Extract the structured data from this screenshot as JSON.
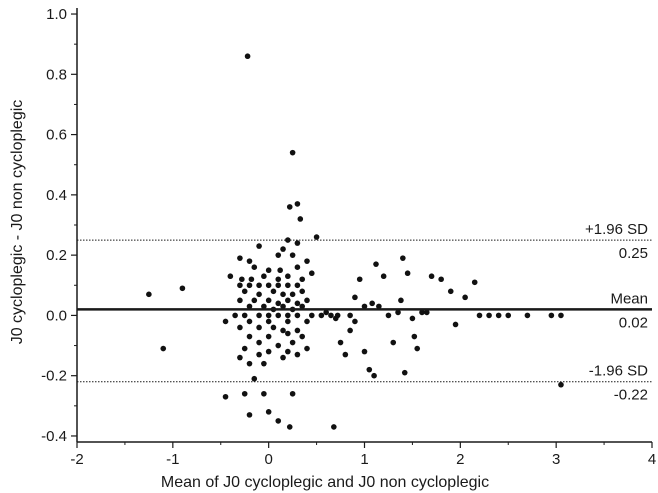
{
  "chart_data": {
    "type": "scatter",
    "xlabel": "Mean of J0 cycloplegic and J0 non  cycloplegic",
    "ylabel": "J0 cycloplegic - J0 non cycloplegic",
    "xlim": [
      -2,
      4
    ],
    "ylim": [
      -0.42,
      1.02
    ],
    "x_ticks": [
      -2,
      -1,
      0,
      1,
      2,
      3,
      4
    ],
    "y_ticks": [
      -0.4,
      -0.2,
      0.0,
      0.2,
      0.4,
      0.6,
      0.8,
      1.0
    ],
    "x_tick_labels": [
      "-2",
      "-1",
      "0",
      "1",
      "2",
      "3",
      "4"
    ],
    "y_tick_labels": [
      "-0.4",
      "-0.2",
      "0.0",
      "0.2",
      "0.4",
      "0.6",
      "0.8",
      "1.0"
    ],
    "grid": false,
    "reference_lines": [
      {
        "label": "+1.96 SD",
        "value_label": "0.25",
        "y": 0.25,
        "style": "dotted"
      },
      {
        "label": "Mean",
        "value_label": "0.02",
        "y": 0.02,
        "style": "solid"
      },
      {
        "label": "-1.96 SD",
        "value_label": "-0.22",
        "y": -0.22,
        "style": "dotted"
      }
    ],
    "points": [
      [
        -0.22,
        0.86
      ],
      [
        0.25,
        0.54
      ],
      [
        0.3,
        0.37
      ],
      [
        0.22,
        0.36
      ],
      [
        0.33,
        0.32
      ],
      [
        0.5,
        0.26
      ],
      [
        0.2,
        0.25
      ],
      [
        0.3,
        0.24
      ],
      [
        -0.1,
        0.23
      ],
      [
        0.15,
        0.22
      ],
      [
        -0.3,
        0.19
      ],
      [
        -0.2,
        0.18
      ],
      [
        0.1,
        0.2
      ],
      [
        0.25,
        0.2
      ],
      [
        0.4,
        0.18
      ],
      [
        -0.15,
        0.16
      ],
      [
        0.0,
        0.15
      ],
      [
        0.12,
        0.15
      ],
      [
        0.3,
        0.16
      ],
      [
        -0.4,
        0.13
      ],
      [
        -0.28,
        0.12
      ],
      [
        -0.18,
        0.12
      ],
      [
        -0.05,
        0.13
      ],
      [
        0.1,
        0.12
      ],
      [
        0.2,
        0.13
      ],
      [
        0.35,
        0.12
      ],
      [
        0.45,
        0.14
      ],
      [
        -0.3,
        0.1
      ],
      [
        -0.2,
        0.1
      ],
      [
        -0.1,
        0.1
      ],
      [
        0.0,
        0.1
      ],
      [
        0.1,
        0.1
      ],
      [
        0.2,
        0.1
      ],
      [
        0.3,
        0.1
      ],
      [
        -0.25,
        0.08
      ],
      [
        -0.1,
        0.07
      ],
      [
        0.05,
        0.08
      ],
      [
        0.15,
        0.07
      ],
      [
        0.25,
        0.07
      ],
      [
        0.35,
        0.08
      ],
      [
        -0.3,
        0.05
      ],
      [
        -0.15,
        0.05
      ],
      [
        0.0,
        0.05
      ],
      [
        0.1,
        0.04
      ],
      [
        0.2,
        0.05
      ],
      [
        0.3,
        0.04
      ],
      [
        0.4,
        0.05
      ],
      [
        -0.2,
        0.03
      ],
      [
        -0.05,
        0.03
      ],
      [
        0.05,
        0.02
      ],
      [
        0.15,
        0.03
      ],
      [
        0.25,
        0.02
      ],
      [
        0.35,
        0.03
      ],
      [
        -0.35,
        0.0
      ],
      [
        -0.25,
        0.0
      ],
      [
        -0.1,
        0.0
      ],
      [
        0.0,
        0.0
      ],
      [
        0.1,
        0.0
      ],
      [
        0.2,
        0.0
      ],
      [
        0.3,
        0.0
      ],
      [
        0.45,
        0.0
      ],
      [
        0.55,
        0.0
      ],
      [
        -0.45,
        -0.02
      ],
      [
        -0.2,
        -0.02
      ],
      [
        0.0,
        -0.02
      ],
      [
        0.2,
        -0.02
      ],
      [
        0.4,
        -0.02
      ],
      [
        -0.3,
        -0.04
      ],
      [
        -0.1,
        -0.04
      ],
      [
        0.05,
        -0.04
      ],
      [
        0.15,
        -0.05
      ],
      [
        0.3,
        -0.05
      ],
      [
        -0.2,
        -0.07
      ],
      [
        0.0,
        -0.07
      ],
      [
        0.2,
        -0.06
      ],
      [
        0.35,
        -0.07
      ],
      [
        -0.1,
        -0.09
      ],
      [
        0.1,
        -0.1
      ],
      [
        0.25,
        -0.09
      ],
      [
        -0.25,
        -0.11
      ],
      [
        0.0,
        -0.12
      ],
      [
        0.2,
        -0.12
      ],
      [
        0.4,
        -0.11
      ],
      [
        -0.3,
        -0.14
      ],
      [
        -0.1,
        -0.13
      ],
      [
        0.15,
        -0.14
      ],
      [
        0.3,
        -0.13
      ],
      [
        -0.2,
        -0.16
      ],
      [
        -0.05,
        -0.16
      ],
      [
        -0.15,
        -0.21
      ],
      [
        -0.25,
        -0.26
      ],
      [
        -0.05,
        -0.26
      ],
      [
        0.25,
        -0.26
      ],
      [
        -0.45,
        -0.27
      ],
      [
        -0.2,
        -0.33
      ],
      [
        0.0,
        -0.32
      ],
      [
        0.1,
        -0.35
      ],
      [
        0.22,
        -0.37
      ],
      [
        0.68,
        -0.37
      ],
      [
        -1.25,
        0.07
      ],
      [
        -1.1,
        -0.11
      ],
      [
        -0.9,
        0.09
      ],
      [
        0.6,
        0.01
      ],
      [
        0.7,
        -0.01
      ],
      [
        0.75,
        -0.09
      ],
      [
        0.8,
        -0.13
      ],
      [
        0.85,
        -0.05
      ],
      [
        0.9,
        -0.02
      ],
      [
        0.95,
        0.12
      ],
      [
        1.0,
        -0.12
      ],
      [
        1.05,
        -0.18
      ],
      [
        1.08,
        0.04
      ],
      [
        1.1,
        -0.2
      ],
      [
        1.15,
        0.03
      ],
      [
        1.12,
        0.17
      ],
      [
        1.2,
        0.13
      ],
      [
        1.3,
        -0.09
      ],
      [
        1.35,
        0.01
      ],
      [
        1.38,
        0.05
      ],
      [
        1.4,
        0.19
      ],
      [
        1.42,
        -0.19
      ],
      [
        1.45,
        0.14
      ],
      [
        1.5,
        -0.01
      ],
      [
        1.52,
        -0.07
      ],
      [
        1.55,
        -0.11
      ],
      [
        1.6,
        0.01
      ],
      [
        1.65,
        0.01
      ],
      [
        1.7,
        0.13
      ],
      [
        1.8,
        0.12
      ],
      [
        1.9,
        0.08
      ],
      [
        1.95,
        -0.03
      ],
      [
        2.05,
        0.06
      ],
      [
        2.15,
        0.11
      ],
      [
        2.2,
        0.0
      ],
      [
        2.3,
        0.0
      ],
      [
        2.4,
        0.0
      ],
      [
        2.5,
        0.0
      ],
      [
        2.7,
        0.0
      ],
      [
        2.95,
        0.0
      ],
      [
        3.05,
        0.0
      ],
      [
        3.05,
        -0.23
      ],
      [
        0.65,
        0.0
      ],
      [
        0.72,
        0.0
      ],
      [
        0.85,
        0.0
      ],
      [
        1.25,
        0.0
      ],
      [
        0.9,
        0.06
      ],
      [
        1.0,
        0.03
      ]
    ]
  }
}
